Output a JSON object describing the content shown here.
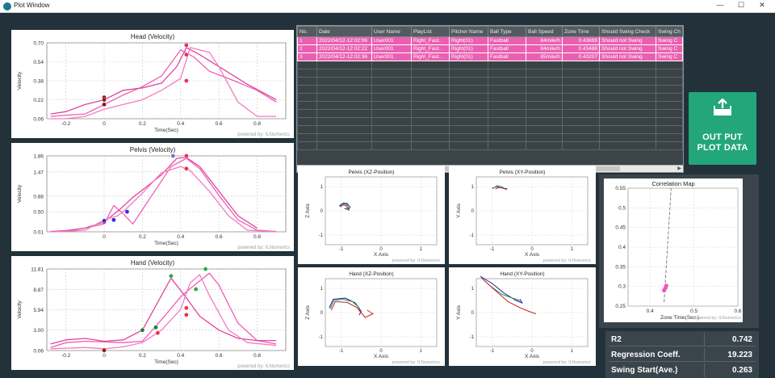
{
  "window": {
    "title": "Plot Window",
    "minimize": "—",
    "maximize": "☐",
    "close": "✕"
  },
  "footer": "powered by: ILNumerics",
  "vel_charts": [
    {
      "title": "Head (Velocity)",
      "xlabel": "Time(Sec)",
      "ylabel": "Velocity",
      "yticks": [
        "0.70",
        "0.54",
        "0.38",
        "0.22",
        "0.06"
      ],
      "xticks": [
        "-0.2",
        "0",
        "0.2",
        "0.4",
        "0.6",
        "0.8"
      ]
    },
    {
      "title": "Pelvis (Velocity)",
      "xlabel": "Time(Sec)",
      "ylabel": "Velocity",
      "yticks": [
        "1.86",
        "1.47",
        "0.88",
        "0.50",
        "0.01"
      ],
      "xticks": [
        "0",
        "0.2",
        "0.4",
        "0.6",
        "0.8"
      ]
    },
    {
      "title": "Hand (Velocity)",
      "xlabel": "Time(Sec)",
      "ylabel": "Velocity",
      "yticks": [
        "11.81",
        "8.87",
        "5.94",
        "3.00",
        "0.06"
      ],
      "xticks": [
        "-0.2",
        "0",
        "0.2",
        "0.4",
        "0.6",
        "0.8"
      ]
    }
  ],
  "table": {
    "columns": [
      "No.",
      "Date",
      "User Name",
      "PlayList",
      "Pitcher Name",
      "Ball Type",
      "Ball Speed",
      "Zone Time",
      "Should Swing Check",
      "Swing Ch"
    ],
    "rows": [
      [
        "1",
        "2022/04/12-12:02:06",
        "User001",
        "Right_Fast..",
        "Right(01)",
        "Fastball",
        "84mile/h",
        "0.43699",
        "Should not Swing",
        "Swing C"
      ],
      [
        "2",
        "2022/04/12-12:02:22",
        "User001",
        "Right_Fast..",
        "Right(01)",
        "Fastball",
        "84mile/h",
        "0.43488",
        "Should not Swing",
        "Swing C"
      ],
      [
        "3",
        "2022/04/12-12:02:36",
        "User001",
        "Right_Fast..",
        "Right(01)",
        "Fastball",
        "85mile/h",
        "0.43207",
        "Should not Swing",
        "Swing C"
      ]
    ]
  },
  "output_button": {
    "line1": "OUT PUT",
    "line2": "PLOT DATA"
  },
  "pos_charts": [
    {
      "title": "Pelvis (XZ-Position)",
      "xlabel": "X Axis",
      "ylabel": "Z Axis",
      "yticks": [
        "1",
        "0",
        "-1"
      ],
      "xticks": [
        "-1",
        "0",
        "1"
      ]
    },
    {
      "title": "Pelvis (XY-Position)",
      "xlabel": "X Axis",
      "ylabel": "Y Axis",
      "yticks": [
        "1",
        "0",
        "-1"
      ],
      "xticks": [
        "-1",
        "0",
        "1"
      ]
    },
    {
      "title": "Hand (XZ-Position)",
      "xlabel": "X Axis",
      "ylabel": "Z Axis",
      "yticks": [
        "1",
        "0",
        "-1"
      ],
      "xticks": [
        "-1",
        "0",
        "1"
      ]
    },
    {
      "title": "Hand (XY-Position)",
      "xlabel": "X Axis",
      "ylabel": "Y Axis",
      "yticks": [
        "1",
        "0",
        "-1"
      ],
      "xticks": [
        "-1",
        "0",
        "1"
      ]
    }
  ],
  "correlation": {
    "title": "Correlation Map",
    "xlabel": "Zone Time(Sec.)",
    "yticks": [
      "0.55",
      "0.5",
      "0.45",
      "0.4",
      "0.35",
      "0.3",
      "0.25"
    ],
    "xticks": [
      "0.4",
      "0.5",
      "0.6"
    ]
  },
  "chart_data": [
    {
      "type": "line",
      "title": "Head (Velocity)",
      "xlabel": "Time(Sec)",
      "ylabel": "Velocity",
      "xlim": [
        -0.3,
        0.95
      ],
      "ylim": [
        0.06,
        0.7
      ],
      "series": [
        {
          "values": [
            [
              -0.28,
              0.08
            ],
            [
              -0.2,
              0.09
            ],
            [
              -0.1,
              0.1
            ],
            [
              0,
              0.18
            ],
            [
              0.1,
              0.26
            ],
            [
              0.2,
              0.33
            ],
            [
              0.3,
              0.42
            ],
            [
              0.4,
              0.64
            ],
            [
              0.47,
              0.58
            ],
            [
              0.55,
              0.46
            ],
            [
              0.65,
              0.4
            ],
            [
              0.8,
              0.3
            ],
            [
              0.9,
              0.2
            ]
          ]
        },
        {
          "values": [
            [
              -0.28,
              0.1
            ],
            [
              -0.2,
              0.12
            ],
            [
              -0.1,
              0.18
            ],
            [
              0,
              0.22
            ],
            [
              0.1,
              0.3
            ],
            [
              0.2,
              0.32
            ],
            [
              0.3,
              0.36
            ],
            [
              0.38,
              0.5
            ],
            [
              0.43,
              0.66
            ],
            [
              0.5,
              0.6
            ],
            [
              0.6,
              0.5
            ],
            [
              0.75,
              0.35
            ],
            [
              0.9,
              0.22
            ]
          ]
        },
        {
          "values": [
            [
              -0.28,
              0.06
            ],
            [
              -0.2,
              0.06
            ],
            [
              -0.1,
              0.08
            ],
            [
              0,
              0.14
            ],
            [
              0.1,
              0.18
            ],
            [
              0.2,
              0.22
            ],
            [
              0.3,
              0.3
            ],
            [
              0.4,
              0.4
            ],
            [
              0.45,
              0.66
            ],
            [
              0.55,
              0.62
            ],
            [
              0.6,
              0.5
            ],
            [
              0.7,
              0.2
            ],
            [
              0.8,
              0.08
            ],
            [
              0.9,
              0.08
            ]
          ]
        }
      ],
      "markers": [
        {
          "x": 0,
          "y": 0.24,
          "color": "#8b1a1a"
        },
        {
          "x": 0,
          "y": 0.22,
          "color": "#8b1a1a"
        },
        {
          "x": 0,
          "y": 0.18,
          "color": "#8b1a1a"
        },
        {
          "x": 0.43,
          "y": 0.68,
          "color": "#e8344a"
        },
        {
          "x": 0.43,
          "y": 0.6,
          "color": "#e8344a"
        },
        {
          "x": 0.43,
          "y": 0.38,
          "color": "#e8344a"
        }
      ]
    },
    {
      "type": "line",
      "title": "Pelvis (Velocity)",
      "xlabel": "Time(Sec)",
      "ylabel": "Velocity",
      "xlim": [
        -0.3,
        0.95
      ],
      "ylim": [
        0.01,
        1.86
      ],
      "series": [
        {
          "values": [
            [
              -0.28,
              0.01
            ],
            [
              -0.2,
              0.02
            ],
            [
              -0.1,
              0.1
            ],
            [
              0,
              0.2
            ],
            [
              0.05,
              0.65
            ],
            [
              0.1,
              0.45
            ],
            [
              0.15,
              0.2
            ],
            [
              0.25,
              0.9
            ],
            [
              0.35,
              1.6
            ],
            [
              0.43,
              1.8
            ],
            [
              0.5,
              1.55
            ],
            [
              0.6,
              0.9
            ],
            [
              0.7,
              0.3
            ],
            [
              0.8,
              0.05
            ],
            [
              0.9,
              0.02
            ]
          ]
        },
        {
          "values": [
            [
              -0.28,
              0.02
            ],
            [
              -0.2,
              0.04
            ],
            [
              -0.1,
              0.1
            ],
            [
              0,
              0.25
            ],
            [
              0.08,
              0.55
            ],
            [
              0.15,
              0.85
            ],
            [
              0.22,
              1.1
            ],
            [
              0.3,
              1.4
            ],
            [
              0.38,
              1.8
            ],
            [
              0.43,
              1.82
            ],
            [
              0.5,
              1.6
            ],
            [
              0.6,
              1.0
            ],
            [
              0.7,
              0.4
            ],
            [
              0.8,
              0.1
            ]
          ]
        },
        {
          "values": [
            [
              -0.28,
              0.01
            ],
            [
              -0.2,
              0.02
            ],
            [
              -0.1,
              0.05
            ],
            [
              0,
              0.3
            ],
            [
              0.07,
              0.4
            ],
            [
              0.1,
              0.5
            ],
            [
              0.2,
              0.95
            ],
            [
              0.3,
              1.45
            ],
            [
              0.4,
              1.6
            ],
            [
              0.45,
              1.5
            ],
            [
              0.55,
              1.0
            ],
            [
              0.65,
              0.4
            ],
            [
              0.75,
              0.05
            ],
            [
              0.9,
              0.01
            ]
          ]
        }
      ],
      "markers": [
        {
          "x": 0,
          "y": 0.25,
          "color": "#d4155d"
        },
        {
          "x": 0,
          "y": 0.28,
          "color": "#3333cc"
        },
        {
          "x": 0.05,
          "y": 0.3,
          "color": "#3333cc"
        },
        {
          "x": 0.12,
          "y": 0.5,
          "color": "#3333cc"
        },
        {
          "x": 0.36,
          "y": 1.86,
          "color": "#6a7bd6"
        },
        {
          "x": 0.43,
          "y": 1.86,
          "color": "#e8344a"
        },
        {
          "x": 0.43,
          "y": 1.55,
          "color": "#e8344a"
        }
      ]
    },
    {
      "type": "line",
      "title": "Hand (Velocity)",
      "xlabel": "Time(Sec)",
      "ylabel": "Velocity",
      "xlim": [
        -0.3,
        0.95
      ],
      "ylim": [
        0.06,
        11.81
      ],
      "series": [
        {
          "values": [
            [
              -0.28,
              0.5
            ],
            [
              -0.2,
              1.2
            ],
            [
              -0.1,
              1.4
            ],
            [
              0,
              1.3
            ],
            [
              0.1,
              1.2
            ],
            [
              0.2,
              1.4
            ],
            [
              0.3,
              4.5
            ],
            [
              0.4,
              7.8
            ],
            [
              0.45,
              9.0
            ],
            [
              0.55,
              11.2
            ],
            [
              0.6,
              9.5
            ],
            [
              0.7,
              4.0
            ],
            [
              0.8,
              1.5
            ],
            [
              0.9,
              1.0
            ]
          ]
        },
        {
          "values": [
            [
              -0.28,
              1.0
            ],
            [
              -0.2,
              1.6
            ],
            [
              -0.1,
              1.8
            ],
            [
              0,
              1.4
            ],
            [
              0.1,
              1.6
            ],
            [
              0.2,
              3.0
            ],
            [
              0.3,
              8.0
            ],
            [
              0.35,
              10.5
            ],
            [
              0.42,
              8.0
            ],
            [
              0.5,
              5.0
            ],
            [
              0.6,
              3.0
            ],
            [
              0.7,
              1.8
            ],
            [
              0.8,
              1.5
            ],
            [
              0.9,
              1.5
            ]
          ]
        },
        {
          "values": [
            [
              -0.28,
              0.3
            ],
            [
              -0.2,
              0.4
            ],
            [
              -0.1,
              0.5
            ],
            [
              0,
              0.3
            ],
            [
              0.1,
              0.6
            ],
            [
              0.2,
              1.2
            ],
            [
              0.3,
              3.0
            ],
            [
              0.4,
              6.0
            ],
            [
              0.45,
              9.8
            ],
            [
              0.5,
              11.0
            ],
            [
              0.55,
              8.0
            ],
            [
              0.65,
              3.0
            ],
            [
              0.75,
              1.2
            ],
            [
              0.9,
              0.8
            ]
          ]
        }
      ],
      "markers": [
        {
          "x": 0,
          "y": 0.1,
          "color": "#8b1a1a"
        },
        {
          "x": 0.2,
          "y": 3.0,
          "color": "#1f7a3a"
        },
        {
          "x": 0.27,
          "y": 3.4,
          "color": "#1f7a3a"
        },
        {
          "x": 0.28,
          "y": 2.6,
          "color": "#e8344a"
        },
        {
          "x": 0.35,
          "y": 10.8,
          "color": "#2fa84f"
        },
        {
          "x": 0.43,
          "y": 6.2,
          "color": "#e8344a"
        },
        {
          "x": 0.43,
          "y": 5.2,
          "color": "#e8344a"
        },
        {
          "x": 0.48,
          "y": 8.9,
          "color": "#2fa84f"
        },
        {
          "x": 0.53,
          "y": 11.8,
          "color": "#2fa84f"
        }
      ]
    },
    {
      "type": "scatter",
      "title": "Correlation Map",
      "xlabel": "Zone Time(Sec.)",
      "xlim": [
        0.35,
        0.6
      ],
      "ylim": [
        0.25,
        0.55
      ],
      "values": [
        [
          0.432,
          0.29
        ],
        [
          0.435,
          0.296
        ],
        [
          0.437,
          0.302
        ]
      ],
      "regression_line": [
        [
          0.432,
          0.26
        ],
        [
          0.448,
          0.55
        ]
      ]
    }
  ],
  "stats": [
    {
      "label": "R2",
      "value": "0.742"
    },
    {
      "label": "Regression Coeff.",
      "value": "19.223"
    },
    {
      "label": "Swing Start(Ave.)",
      "value": "0.263"
    }
  ],
  "colors": {
    "accent_button": "#22a67a",
    "row_highlight": "#ea5fb1",
    "series_line": "#f05ab2",
    "background": "#22313a"
  }
}
